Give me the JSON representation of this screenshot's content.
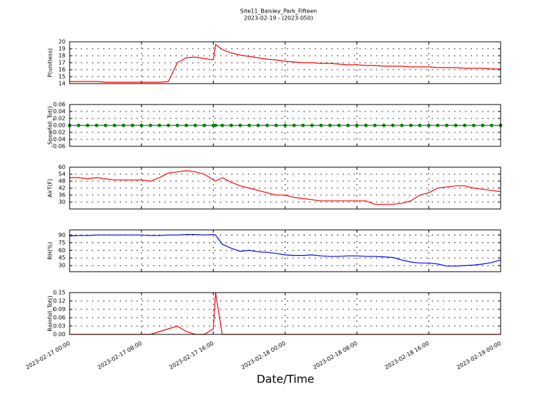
{
  "chart_data": {
    "type": "line",
    "title": "Site11_Baisley_Park_Fifteen",
    "subtitle": "2023-02-19 - (2023-050)",
    "xlabel": "Date/Time",
    "xlim": [
      "2023-02-17 00:00",
      "2023-02-19 00:00"
    ],
    "xticks": [
      "2023-02-17 00:00",
      "2023-02-17 08:00",
      "2023-02-17 16:00",
      "2023-02-18 00:00",
      "2023-02-18 08:00",
      "2023-02-18 16:00",
      "2023-02-19 00:00"
    ],
    "grid": true,
    "x": [
      "2023-02-17 00:00",
      "2023-02-17 01:00",
      "2023-02-17 02:00",
      "2023-02-17 03:00",
      "2023-02-17 04:00",
      "2023-02-17 05:00",
      "2023-02-17 06:00",
      "2023-02-17 07:00",
      "2023-02-17 08:00",
      "2023-02-17 09:00",
      "2023-02-17 10:00",
      "2023-02-17 11:00",
      "2023-02-17 12:00",
      "2023-02-17 13:00",
      "2023-02-17 14:00",
      "2023-02-17 15:00",
      "2023-02-17 16:00",
      "2023-02-17 16:15",
      "2023-02-17 17:00",
      "2023-02-17 18:00",
      "2023-02-17 19:00",
      "2023-02-17 20:00",
      "2023-02-17 21:00",
      "2023-02-17 22:00",
      "2023-02-17 23:00",
      "2023-02-18 00:00",
      "2023-02-18 01:00",
      "2023-02-18 02:00",
      "2023-02-18 03:00",
      "2023-02-18 04:00",
      "2023-02-18 05:00",
      "2023-02-18 06:00",
      "2023-02-18 07:00",
      "2023-02-18 08:00",
      "2023-02-18 09:00",
      "2023-02-18 10:00",
      "2023-02-18 11:00",
      "2023-02-18 12:00",
      "2023-02-18 13:00",
      "2023-02-18 14:00",
      "2023-02-18 15:00",
      "2023-02-18 16:00",
      "2023-02-18 17:00",
      "2023-02-18 18:00",
      "2023-02-18 19:00",
      "2023-02-18 20:00",
      "2023-02-18 21:00",
      "2023-02-18 22:00",
      "2023-02-18 23:00",
      "2023-02-19 00:00"
    ],
    "panels": [
      {
        "ylabel": "P(unitless)",
        "ylim": [
          14,
          20
        ],
        "yticks": [
          14,
          15,
          16,
          17,
          18,
          19,
          20
        ],
        "series": [
          {
            "color": "#ff0000",
            "marker": false,
            "values": [
              14.3,
              14.3,
              14.3,
              14.3,
              14.2,
              14.2,
              14.2,
              14.2,
              14.2,
              14.2,
              14.2,
              14.3,
              17.0,
              17.7,
              17.8,
              17.6,
              17.4,
              19.6,
              18.9,
              18.4,
              18.1,
              17.9,
              17.7,
              17.5,
              17.4,
              17.2,
              17.1,
              17.0,
              17.0,
              16.9,
              16.9,
              16.8,
              16.7,
              16.7,
              16.6,
              16.6,
              16.5,
              16.5,
              16.5,
              16.4,
              16.4,
              16.4,
              16.3,
              16.3,
              16.3,
              16.2,
              16.2,
              16.2,
              16.1,
              16.1
            ]
          }
        ]
      },
      {
        "ylabel": "Snowfall_Tot()",
        "ylim": [
          -0.06,
          0.06
        ],
        "yticks": [
          {
            "value": -0.06,
            "label": "-0.06"
          },
          {
            "value": -0.04,
            "label": "-0.04"
          },
          {
            "value": -0.02,
            "label": "-0.02"
          },
          {
            "value": 0,
            "label": "0.00"
          },
          {
            "value": 0.02,
            "label": "0.02"
          },
          {
            "value": 0.04,
            "label": "0.04"
          },
          {
            "value": 0.06,
            "label": "0.06"
          }
        ],
        "series": [
          {
            "color": "#008000",
            "marker": true,
            "values": [
              0,
              0,
              0,
              0,
              0,
              0,
              0,
              0,
              0,
              0,
              0,
              0,
              0,
              0,
              0,
              0,
              0,
              0,
              0,
              0,
              0,
              0,
              0,
              0,
              0,
              0,
              0,
              0,
              0,
              0,
              0,
              0,
              0,
              0,
              0,
              0,
              0,
              0,
              0,
              0,
              0,
              0,
              0,
              0,
              0,
              0,
              0,
              0,
              0,
              0
            ]
          }
        ]
      },
      {
        "ylabel": "AirT(F)",
        "ylim": [
          24,
          60
        ],
        "yticks": [
          30,
          36,
          42,
          48,
          54,
          60
        ],
        "series": [
          {
            "color": "#ff0000",
            "marker": false,
            "values": [
              51,
              51,
              50,
              51,
              50,
              49,
              49,
              49,
              49,
              48,
              51,
              55,
              56,
              57,
              56,
              54,
              49,
              48,
              51,
              47,
              44,
              42,
              40,
              38,
              36,
              36,
              34,
              33,
              32,
              31,
              31,
              31,
              31,
              31,
              31,
              28,
              28,
              28,
              29,
              31,
              36,
              38,
              42,
              43,
              44,
              44,
              42,
              41,
              40,
              39
            ]
          }
        ]
      },
      {
        "ylabel": "RH(%)",
        "ylim": [
          18,
          100
        ],
        "yticks": [
          30,
          45,
          60,
          75,
          90
        ],
        "series": [
          {
            "color": "#0000ff",
            "marker": false,
            "values": [
              88,
              89,
              89,
              90,
              90,
              90,
              90,
              90,
              90,
              89,
              89,
              90,
              90,
              91,
              91,
              90,
              91,
              90,
              72,
              64,
              58,
              60,
              57,
              56,
              54,
              51,
              50,
              50,
              51,
              49,
              48,
              48,
              49,
              49,
              48,
              48,
              47,
              46,
              41,
              37,
              35,
              35,
              33,
              29,
              29,
              30,
              31,
              33,
              36,
              41
            ]
          }
        ]
      },
      {
        "ylabel": "Rainfall_Tot()",
        "ylim": [
          0,
          0.15
        ],
        "yticks": [
          {
            "value": 0,
            "label": "0.00"
          },
          {
            "value": 0.03,
            "label": "0.03"
          },
          {
            "value": 0.06,
            "label": "0.06"
          },
          {
            "value": 0.09,
            "label": "0.09"
          },
          {
            "value": 0.12,
            "label": "0.12"
          },
          {
            "value": 0.15,
            "label": "0.15"
          }
        ],
        "series": [
          {
            "color": "#ff0000",
            "marker": false,
            "values": [
              0,
              0,
              0,
              0,
              0,
              0,
              0,
              0,
              0,
              0,
              0.01,
              0.02,
              0.03,
              0.01,
              0,
              0,
              0.02,
              0.15,
              0,
              0,
              0,
              0,
              0,
              0,
              0,
              0,
              0,
              0,
              0,
              0,
              0,
              0,
              0,
              0,
              0,
              0,
              0,
              0,
              0,
              0,
              0,
              0,
              0,
              0,
              0,
              0,
              0,
              0,
              0,
              0
            ]
          }
        ]
      }
    ]
  }
}
